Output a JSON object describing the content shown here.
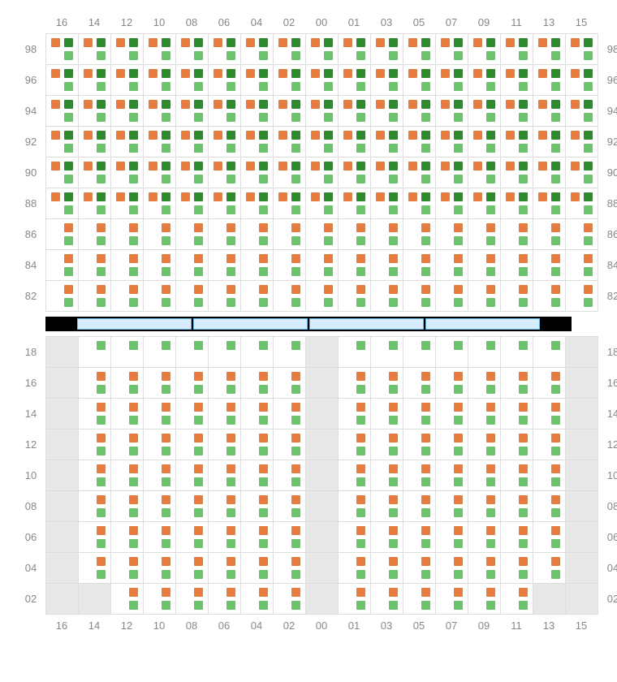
{
  "colors": {
    "orange": "#e87b3e",
    "dark_green": "#2d8a2d",
    "light_green": "#6bc46b",
    "cell_border": "#dddddd",
    "empty_cell": "#e8e8e8",
    "label_text": "#888888",
    "divider_bg": "#000000",
    "divider_seg_fill": "#d4ecfb",
    "divider_seg_border": "#6cb8e6"
  },
  "layout": {
    "columns": [
      "16",
      "14",
      "12",
      "10",
      "08",
      "06",
      "04",
      "02",
      "00",
      "01",
      "03",
      "05",
      "07",
      "09",
      "11",
      "13",
      "15"
    ],
    "top_rows": [
      "98",
      "96",
      "94",
      "92",
      "90",
      "88",
      "86",
      "84",
      "82"
    ],
    "bottom_rows": [
      "18",
      "16",
      "14",
      "12",
      "10",
      "08",
      "06",
      "04",
      "02"
    ],
    "cell_size": {
      "w": 40,
      "h": 38
    },
    "divider_segments": 4
  },
  "patterns": {
    "A": {
      "tl": "orange",
      "tr": "dark_green",
      "bl": null,
      "br": "light_green"
    },
    "B": {
      "tl": null,
      "tr": "orange",
      "bl": null,
      "br": "light_green"
    },
    "C": {
      "tl": null,
      "tr": "light_green",
      "bl": null,
      "br": null
    },
    "D": {
      "tl": "orange",
      "tr": null,
      "bl": "light_green",
      "br": null
    },
    "E": {
      "tl": null,
      "tr": null,
      "bl": null,
      "br": null
    }
  },
  "top_grid": [
    [
      "A",
      "A",
      "A",
      "A",
      "A",
      "A",
      "A",
      "A",
      "A",
      "A",
      "A",
      "A",
      "A",
      "A",
      "A",
      "A",
      "A"
    ],
    [
      "A",
      "A",
      "A",
      "A",
      "A",
      "A",
      "A",
      "A",
      "A",
      "A",
      "A",
      "A",
      "A",
      "A",
      "A",
      "A",
      "A"
    ],
    [
      "A",
      "A",
      "A",
      "A",
      "A",
      "A",
      "A",
      "A",
      "A",
      "A",
      "A",
      "A",
      "A",
      "A",
      "A",
      "A",
      "A"
    ],
    [
      "A",
      "A",
      "A",
      "A",
      "A",
      "A",
      "A",
      "A",
      "A",
      "A",
      "A",
      "A",
      "A",
      "A",
      "A",
      "A",
      "A"
    ],
    [
      "A",
      "A",
      "A",
      "A",
      "A",
      "A",
      "A",
      "A",
      "A",
      "A",
      "A",
      "A",
      "A",
      "A",
      "A",
      "A",
      "A"
    ],
    [
      "A",
      "A",
      "A",
      "A",
      "A",
      "A",
      "A",
      "A",
      "A",
      "A",
      "A",
      "A",
      "A",
      "A",
      "A",
      "A",
      "A"
    ],
    [
      "B",
      "B",
      "B",
      "B",
      "B",
      "B",
      "B",
      "B",
      "B",
      "B",
      "B",
      "B",
      "B",
      "B",
      "B",
      "B",
      "B"
    ],
    [
      "B",
      "B",
      "B",
      "B",
      "B",
      "B",
      "B",
      "B",
      "B",
      "B",
      "B",
      "B",
      "B",
      "B",
      "B",
      "B",
      "B"
    ],
    [
      "B",
      "B",
      "B",
      "B",
      "B",
      "B",
      "B",
      "B",
      "B",
      "B",
      "B",
      "B",
      "B",
      "B",
      "B",
      "B",
      "B"
    ]
  ],
  "bottom_grid": [
    [
      "E",
      "C",
      "C",
      "C",
      "C",
      "C",
      "C",
      "C",
      "E",
      "C",
      "C",
      "C",
      "C",
      "C",
      "C",
      "C",
      "E"
    ],
    [
      "E",
      "B",
      "B",
      "B",
      "B",
      "B",
      "B",
      "B",
      "E",
      "B",
      "B",
      "B",
      "B",
      "B",
      "B",
      "B",
      "E"
    ],
    [
      "E",
      "B",
      "B",
      "B",
      "B",
      "B",
      "B",
      "B",
      "E",
      "B",
      "B",
      "B",
      "B",
      "B",
      "B",
      "B",
      "E"
    ],
    [
      "E",
      "B",
      "B",
      "B",
      "B",
      "B",
      "B",
      "B",
      "E",
      "B",
      "B",
      "B",
      "B",
      "B",
      "B",
      "B",
      "E"
    ],
    [
      "E",
      "B",
      "B",
      "B",
      "B",
      "B",
      "B",
      "B",
      "E",
      "B",
      "B",
      "B",
      "B",
      "B",
      "B",
      "B",
      "E"
    ],
    [
      "E",
      "B",
      "B",
      "B",
      "B",
      "B",
      "B",
      "B",
      "E",
      "B",
      "B",
      "B",
      "B",
      "B",
      "B",
      "B",
      "E"
    ],
    [
      "E",
      "B",
      "B",
      "B",
      "B",
      "B",
      "B",
      "B",
      "E",
      "B",
      "B",
      "B",
      "B",
      "B",
      "B",
      "B",
      "E"
    ],
    [
      "E",
      "B",
      "B",
      "B",
      "B",
      "B",
      "B",
      "B",
      "E",
      "B",
      "B",
      "B",
      "B",
      "B",
      "B",
      "B",
      "E"
    ],
    [
      "E",
      "E",
      "B",
      "B",
      "B",
      "B",
      "B",
      "B",
      "E",
      "B",
      "B",
      "B",
      "B",
      "B",
      "B",
      "E",
      "E"
    ]
  ]
}
